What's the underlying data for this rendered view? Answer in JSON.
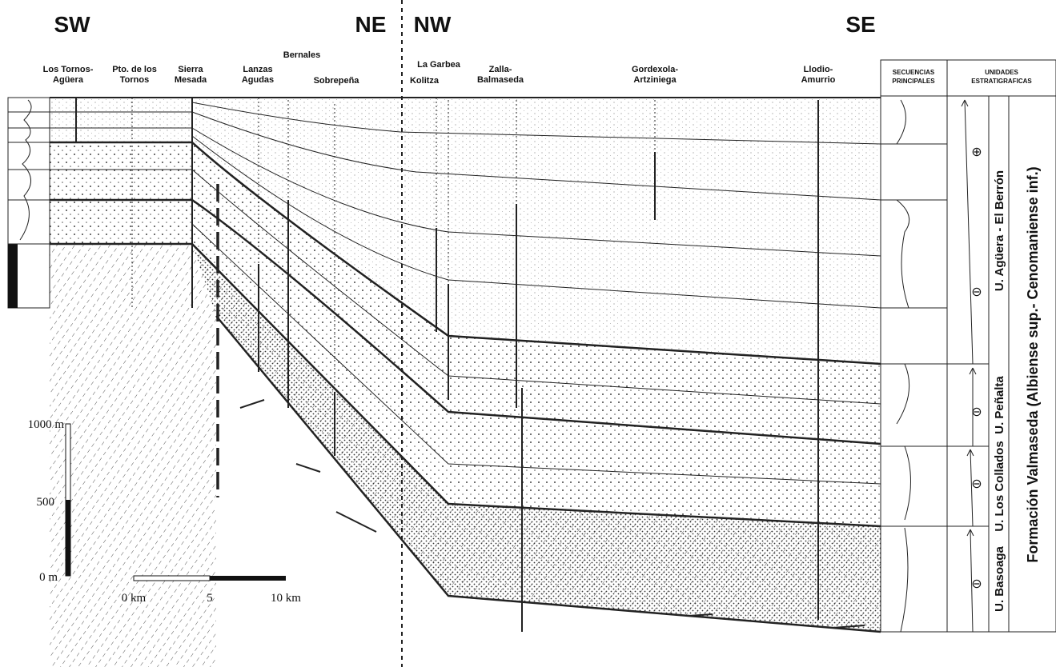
{
  "directions": [
    "SW",
    "NE",
    "NW",
    "SE"
  ],
  "localities": [
    {
      "lines": [
        "Los Tornos-",
        "Agüera"
      ]
    },
    {
      "lines": [
        "Pto. de los",
        "Tornos"
      ]
    },
    {
      "lines": [
        "Sierra",
        "Mesada"
      ]
    },
    {
      "lines": [
        "Lanzas",
        "Agudas"
      ]
    },
    {
      "lines": [
        "Bernales"
      ]
    },
    {
      "lines": [
        "Sobrepeña"
      ]
    },
    {
      "lines": [
        "La Garbea"
      ]
    },
    {
      "lines": [
        "Kolitza"
      ]
    },
    {
      "lines": [
        "Zalla-",
        "Balmaseda"
      ]
    },
    {
      "lines": [
        "Gordexola-",
        "Artziniega"
      ]
    },
    {
      "lines": [
        "Llodio-",
        "Amurrio"
      ]
    }
  ],
  "column_headers": [
    {
      "lines": [
        "SECUENCIAS",
        "PRINCIPALES"
      ]
    },
    {
      "lines": [
        "UNIDADES",
        "ESTRATIGRAFICAS"
      ]
    }
  ],
  "units": [
    "U. Agüera - El Berrón",
    "U. Peñalta",
    "U. Los Collados",
    "U. Basoaga"
  ],
  "formation": "Formación Valmaseda (Albiense sup.- Cenomaniense inf.)",
  "symbols": [
    "⊕",
    "⊖",
    "⊖",
    "⊖",
    "⊖"
  ],
  "vertical_scale": [
    "1000 m",
    "500",
    "0 m"
  ],
  "horizontal_scale": [
    "0 km",
    "5",
    "10 km"
  ]
}
